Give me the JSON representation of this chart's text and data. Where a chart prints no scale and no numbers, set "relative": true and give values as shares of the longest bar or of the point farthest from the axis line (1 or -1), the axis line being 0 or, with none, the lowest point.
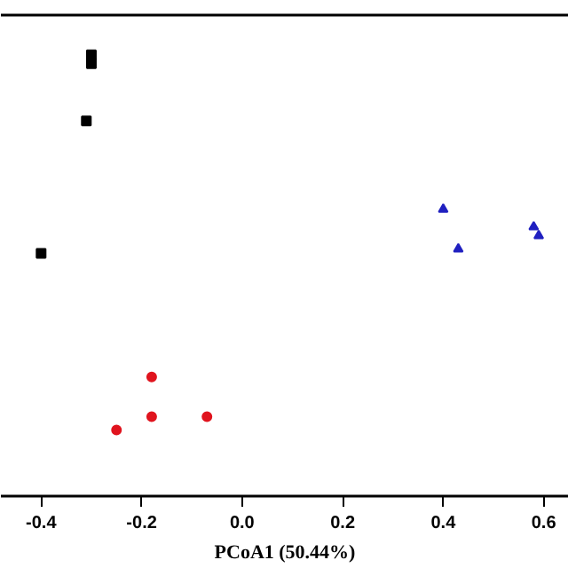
{
  "chart_data": {
    "type": "scatter",
    "xlabel": "PCoA1 (50.44%)",
    "xlim": [
      -0.48,
      0.65
    ],
    "xticks": [
      {
        "value": -0.4,
        "label": "-0.4"
      },
      {
        "value": -0.2,
        "label": "-0.2"
      },
      {
        "value": 0,
        "label": "0.0"
      },
      {
        "value": 0.2,
        "label": "0.2"
      },
      {
        "value": 0.4,
        "label": "0.4"
      },
      {
        "value": 0.6,
        "label": "0.6"
      }
    ],
    "relative": true,
    "grid": false,
    "tick_labels": "x",
    "series": [
      {
        "color": "#000000",
        "marker": "square",
        "x": [
          -0.3,
          -0.3,
          -0.31,
          -0.4
        ],
        "values": [
          1.0,
          0.98,
          0.85,
          0.55
        ]
      },
      {
        "color": "#2020c0",
        "marker": "triangle",
        "x": [
          0.4,
          0.43,
          0.58,
          0.59
        ],
        "values": [
          0.65,
          0.56,
          0.61,
          0.59
        ]
      },
      {
        "color": "#e0141e",
        "marker": "circle",
        "x": [
          -0.18,
          -0.25,
          -0.18,
          -0.07
        ],
        "values": [
          0.27,
          0.15,
          0.18,
          0.18
        ]
      }
    ]
  }
}
